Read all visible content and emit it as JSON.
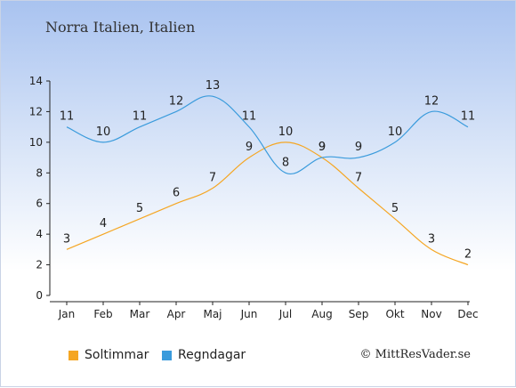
{
  "title": "Norra Italien, Italien",
  "copyright": "© MittResVader.se",
  "chart_data": {
    "type": "line",
    "categories": [
      "Jan",
      "Feb",
      "Mar",
      "Apr",
      "Maj",
      "Jun",
      "Jul",
      "Aug",
      "Sep",
      "Okt",
      "Nov",
      "Dec"
    ],
    "y_ticks": [
      "0",
      "2",
      "4",
      "6",
      "8",
      "10",
      "12",
      "14"
    ],
    "ylim": [
      0,
      14
    ],
    "grid": false,
    "legend_position": "bottom-left",
    "series": [
      {
        "name": "Soltimmar",
        "color": "#f5a623",
        "values": [
          3,
          4,
          5,
          6,
          7,
          9,
          10,
          9,
          7,
          5,
          3,
          2
        ]
      },
      {
        "name": "Regndagar",
        "color": "#3a9bdc",
        "values": [
          11,
          10,
          11,
          12,
          13,
          11,
          8,
          9,
          9,
          10,
          12,
          11
        ]
      }
    ]
  }
}
